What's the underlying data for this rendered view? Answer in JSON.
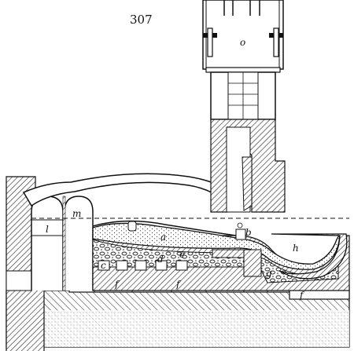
{
  "figure": {
    "number": "307",
    "labels": {
      "o": "o",
      "a": "a",
      "b": "b",
      "c": "c",
      "d": "d",
      "e": "e",
      "f": "f",
      "g": "g",
      "h": "h",
      "l": "l",
      "m": "m"
    }
  }
}
